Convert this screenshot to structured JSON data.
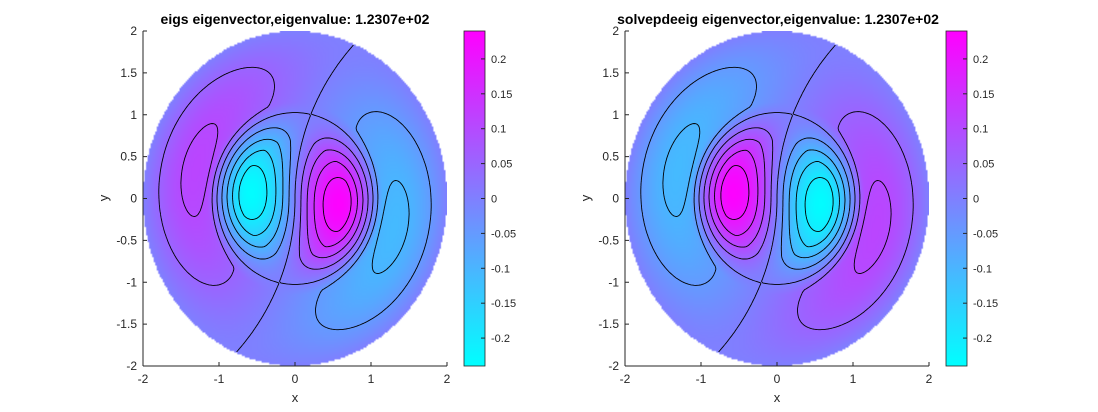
{
  "colors": {
    "colormap_low": "#00ffff",
    "colormap_high": "#ff00ff",
    "contour_line": "#000000",
    "axis": "#262626"
  },
  "chart_data": [
    {
      "type": "heatmap",
      "title": "eigs eigenvector,eigenvalue:  1.2307e+02",
      "xlabel": "x",
      "ylabel": "y",
      "xlim": [
        -2,
        2
      ],
      "ylim": [
        -2,
        2
      ],
      "xticks": [
        -2,
        -1,
        0,
        1,
        2
      ],
      "yticks": [
        -2,
        -1.5,
        -1,
        -0.5,
        0,
        0.5,
        1,
        1.5,
        2
      ],
      "xtick_labels": [
        "-2",
        "-1",
        "0",
        "1",
        "2"
      ],
      "ytick_labels": [
        "-2",
        "-1.5",
        "-1",
        "-0.5",
        "0",
        "0.5",
        "1",
        "1.5",
        "2"
      ],
      "domain": "disk of radius 2",
      "eigenvalue": "1.2307e+02",
      "max_location": [
        0.5,
        0.1
      ],
      "min_location": [
        -0.5,
        -0.1
      ],
      "colorbar": {
        "range": [
          -0.24,
          0.24
        ],
        "ticks": [
          -0.2,
          -0.15,
          -0.1,
          -0.05,
          0,
          0.05,
          0.1,
          0.15,
          0.2
        ],
        "tick_labels": [
          "-0.2",
          "-0.15",
          "-0.1",
          "-0.05",
          "0",
          "0.05",
          "0.1",
          "0.15",
          "0.2"
        ],
        "colormap": "cool"
      },
      "contour_levels": [
        -0.2,
        -0.15,
        -0.1,
        -0.05,
        0,
        0.05,
        0.1,
        0.15,
        0.2
      ]
    },
    {
      "type": "heatmap",
      "title": "solvepdeeig eigenvector,eigenvalue:  1.2307e+02",
      "xlabel": "x",
      "ylabel": "y",
      "xlim": [
        -2,
        2
      ],
      "ylim": [
        -2,
        2
      ],
      "xticks": [
        -2,
        -1,
        0,
        1,
        2
      ],
      "yticks": [
        -2,
        -1.5,
        -1,
        -0.5,
        0,
        0.5,
        1,
        1.5,
        2
      ],
      "xtick_labels": [
        "-2",
        "-1",
        "0",
        "1",
        "2"
      ],
      "ytick_labels": [
        "-2",
        "-1.5",
        "-1",
        "-0.5",
        "0",
        "0.5",
        "1",
        "1.5",
        "2"
      ],
      "domain": "disk of radius 2",
      "eigenvalue": "1.2307e+02",
      "max_location": [
        -0.5,
        -0.1
      ],
      "min_location": [
        0.5,
        0.1
      ],
      "colorbar": {
        "range": [
          -0.24,
          0.24
        ],
        "ticks": [
          -0.2,
          -0.15,
          -0.1,
          -0.05,
          0,
          0.05,
          0.1,
          0.15,
          0.2
        ],
        "tick_labels": [
          "-0.2",
          "-0.15",
          "-0.1",
          "-0.05",
          "0",
          "0.05",
          "0.1",
          "0.15",
          "0.2"
        ],
        "colormap": "cool"
      },
      "contour_levels": [
        -0.2,
        -0.15,
        -0.1,
        -0.05,
        0,
        0.05,
        0.1,
        0.15,
        0.2
      ]
    }
  ]
}
